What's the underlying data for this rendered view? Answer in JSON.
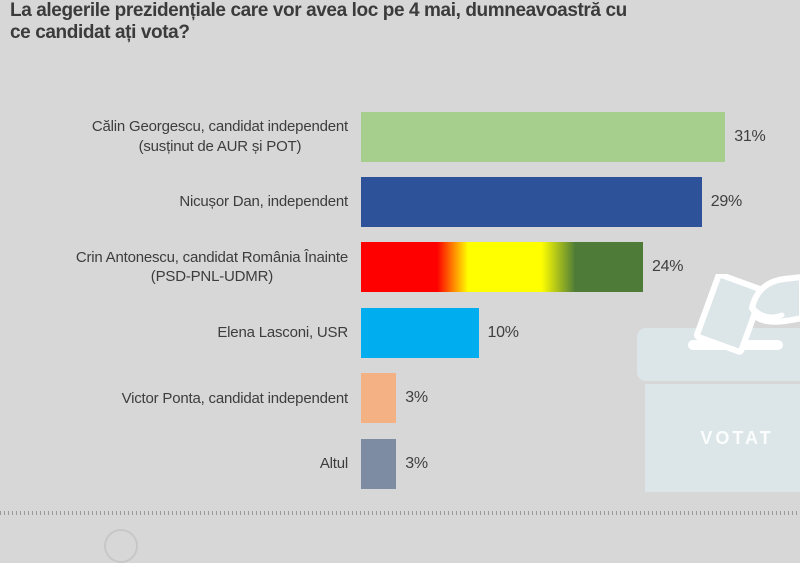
{
  "page": {
    "background": "#d7d7d7"
  },
  "question": {
    "text": "La alegerile prezidențiale care vor avea loc pe 4 mai, dumneavoastră cu ce candidat ați vota?",
    "lines": [
      "La alegerile prezidențiale care vor avea loc pe 4 mai, dumneavoastră cu",
      "ce candidat ați vota?"
    ]
  },
  "chart_data": {
    "type": "bar",
    "orientation": "horizontal",
    "title": "La alegerile prezidențiale care vor avea loc pe 4 mai, dumneavoastră cu ce candidat ați vota?",
    "unit": "%",
    "xlim": [
      0,
      31
    ],
    "grid": false,
    "legend": false,
    "categories": [
      "Călin Georgescu, candidat independent (susținut de AUR și POT)",
      "Nicușor Dan, independent",
      "Crin Antonescu, candidat România Înainte (PSD-PNL-UDMR)",
      "Elena Lasconi, USR",
      "Victor Ponta, candidat independent",
      "Altul"
    ],
    "values": [
      31,
      29,
      24,
      10,
      3,
      3
    ],
    "bars": [
      {
        "label_lines": [
          "Călin Georgescu, candidat independent",
          "(susținut de AUR și POT)"
        ],
        "value": 31,
        "value_label": "31%",
        "color": "#a6cf8d"
      },
      {
        "label_lines": [
          "Nicușor Dan, independent"
        ],
        "value": 29,
        "value_label": "29%",
        "color": "#2d5299"
      },
      {
        "label_lines": [
          "Crin Antonescu, candidat România Înainte",
          "(PSD-PNL-UDMR)"
        ],
        "value": 24,
        "value_label": "24%",
        "gradient": [
          [
            "#fe0000",
            0
          ],
          [
            "#fe0000",
            27
          ],
          [
            "#ffff00",
            38
          ],
          [
            "#ffff00",
            64
          ],
          [
            "#4e7c38",
            76
          ],
          [
            "#4e7c38",
            100
          ]
        ]
      },
      {
        "label_lines": [
          "Elena Lasconi, USR"
        ],
        "value": 10,
        "value_label": "10%",
        "color": "#00adee"
      },
      {
        "label_lines": [
          "Victor Ponta, candidat independent"
        ],
        "value": 3,
        "value_label": "3%",
        "color": "#f4b183"
      },
      {
        "label_lines": [
          "Altul"
        ],
        "value": 3,
        "value_label": "3%",
        "color": "#7d8ba3"
      }
    ]
  },
  "ballot_box": {
    "stamp_text": "VOTAT",
    "box_color": "#dce6e8",
    "outline_color": "#ffffff"
  }
}
